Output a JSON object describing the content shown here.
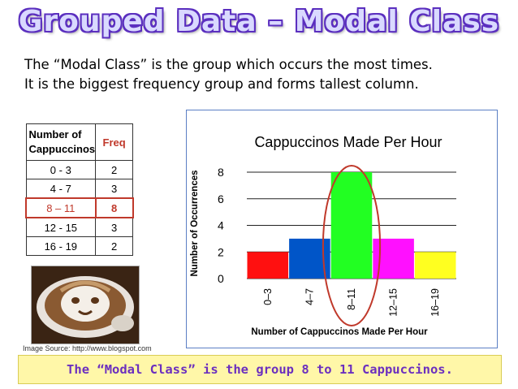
{
  "title": "Grouped Data – Modal Class",
  "intro": {
    "line1": "The “Modal Class” is the group which occurs the most times.",
    "line2": "It is the biggest frequency group and forms tallest column."
  },
  "table": {
    "header_group": "Number of Cappuccinos",
    "header_freq": "Freq",
    "rows": [
      {
        "group": "0 - 3",
        "freq": "2"
      },
      {
        "group": "4 - 7",
        "freq": "3"
      },
      {
        "group": "8 – 11",
        "freq": "8"
      },
      {
        "group": "12 - 15",
        "freq": "3"
      },
      {
        "group": "16 - 19",
        "freq": "2"
      }
    ]
  },
  "image_source": "Image Source: http://www.blogspot.com",
  "conclusion": "The “Modal Class” is the group 8 to 11 Cappuccinos.",
  "colors": {
    "bars": [
      "#ff1010",
      "#0055c8",
      "#22ff22",
      "#ff10ff",
      "#ffff20"
    ],
    "highlight": "#c0392b"
  },
  "chart_data": {
    "type": "bar",
    "title": "Cappuccinos Made Per Hour",
    "xlabel": "Number of Cappuccinos Made Per Hour",
    "ylabel": "Number of Occurrences",
    "categories": [
      "0–3",
      "4–7",
      "8–11",
      "12–15",
      "16–19"
    ],
    "values": [
      2,
      3,
      8,
      3,
      2
    ],
    "yticks": [
      0,
      2,
      4,
      6,
      8
    ],
    "ylim": [
      0,
      8
    ],
    "grid": true,
    "highlighted_category": "8–11"
  }
}
